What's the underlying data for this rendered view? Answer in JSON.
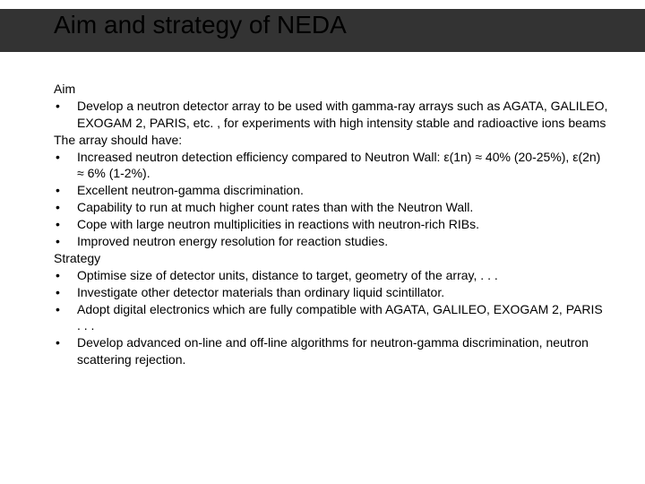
{
  "title": "Aim and strategy of NEDA",
  "colors": {
    "title_bar": "#333333",
    "background": "#ffffff",
    "text": "#000000"
  },
  "fonts": {
    "title_size": 28,
    "body_size": 14,
    "family": "Arial"
  },
  "sections": [
    {
      "heading": "Aim",
      "bullets": [
        "Develop a neutron detector array to be used with gamma-ray arrays such as AGATA, GALILEO, EXOGAM 2, PARIS, etc. , for experiments with high intensity stable and radioactive ions beams"
      ]
    },
    {
      "heading": "The array should have:",
      "bullets": [
        "Increased neutron detection efficiency compared to Neutron Wall: ε(1n) ≈ 40% (20-25%), ε(2n) ≈ 6% (1-2%).",
        "Excellent neutron-gamma discrimination.",
        "Capability to run at much higher count rates than with the Neutron Wall.",
        "Cope with large neutron multiplicities in reactions with neutron-rich RIBs.",
        "Improved neutron energy resolution for reaction studies."
      ]
    },
    {
      "heading": "Strategy",
      "bullets": [
        "Optimise size of detector units, distance to target, geometry of the array, . . .",
        "Investigate other detector materials than ordinary liquid scintillator.",
        "Adopt digital electronics which are fully compatible with AGATA, GALILEO, EXOGAM 2, PARIS . . .",
        "Develop advanced on-line and off-line algorithms for neutron-gamma discrimination, neutron scattering rejection."
      ]
    }
  ]
}
